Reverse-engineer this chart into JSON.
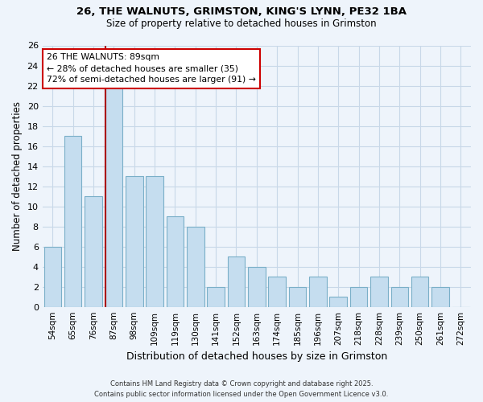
{
  "title1": "26, THE WALNUTS, GRIMSTON, KING'S LYNN, PE32 1BA",
  "title2": "Size of property relative to detached houses in Grimston",
  "xlabel": "Distribution of detached houses by size in Grimston",
  "ylabel": "Number of detached properties",
  "bar_color": "#c5ddef",
  "bar_edge_color": "#7aafc8",
  "categories": [
    "54sqm",
    "65sqm",
    "76sqm",
    "87sqm",
    "98sqm",
    "109sqm",
    "119sqm",
    "130sqm",
    "141sqm",
    "152sqm",
    "163sqm",
    "174sqm",
    "185sqm",
    "196sqm",
    "207sqm",
    "218sqm",
    "228sqm",
    "239sqm",
    "250sqm",
    "261sqm",
    "272sqm"
  ],
  "values": [
    6,
    17,
    11,
    22,
    13,
    13,
    9,
    8,
    2,
    5,
    4,
    3,
    2,
    3,
    1,
    2,
    3,
    2,
    3,
    2,
    0
  ],
  "property_line_idx": 3,
  "property_line_color": "#aa0000",
  "annotation_title": "26 THE WALNUTS: 89sqm",
  "annotation_line1": "← 28% of detached houses are smaller (35)",
  "annotation_line2": "72% of semi-detached houses are larger (91) →",
  "ylim": [
    0,
    26
  ],
  "yticks": [
    0,
    2,
    4,
    6,
    8,
    10,
    12,
    14,
    16,
    18,
    20,
    22,
    24,
    26
  ],
  "footnote1": "Contains HM Land Registry data © Crown copyright and database right 2025.",
  "footnote2": "Contains public sector information licensed under the Open Government Licence v3.0.",
  "background_color": "#eef4fb",
  "grid_color": "#c8d8e8"
}
